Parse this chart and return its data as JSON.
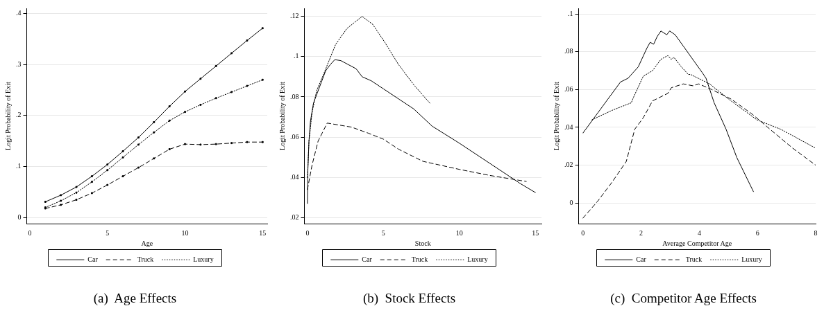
{
  "chart_data": [
    {
      "type": "line",
      "title": "(a)  Age Effects",
      "xlabel": "Age",
      "ylabel": "Logit Probability of Exit",
      "xlim": [
        -0.2,
        15.3
      ],
      "ylim": [
        -0.012,
        0.41
      ],
      "xticks": [
        0,
        5,
        10,
        15
      ],
      "yticks": [
        0,
        {
          "value": 0.1,
          "label": ".1"
        },
        {
          "value": 0.2,
          "label": ".2"
        },
        {
          "value": 0.3,
          "label": ".3"
        },
        {
          "value": 0.4,
          "label": ".4"
        }
      ],
      "grid": "y",
      "legend": "bottom",
      "marker": "square",
      "series": [
        {
          "name": "Car",
          "color": "#000000",
          "line_style": "solid",
          "x": [
            1,
            2,
            3,
            4,
            5,
            6,
            7,
            8,
            9,
            10,
            11,
            12,
            13,
            14,
            15
          ],
          "values": [
            0.031,
            0.044,
            0.06,
            0.081,
            0.104,
            0.13,
            0.157,
            0.187,
            0.218,
            0.247,
            0.272,
            0.297,
            0.322,
            0.347,
            0.371
          ]
        },
        {
          "name": "Truck",
          "color": "#000000",
          "line_style": "dashed",
          "x": [
            1,
            2,
            3,
            4,
            5,
            6,
            7,
            8,
            9,
            10,
            11,
            12,
            13,
            14,
            15
          ],
          "values": [
            0.018,
            0.025,
            0.035,
            0.048,
            0.064,
            0.081,
            0.098,
            0.116,
            0.134,
            0.144,
            0.143,
            0.144,
            0.146,
            0.148,
            0.148
          ]
        },
        {
          "name": "Luxury",
          "color": "#000000",
          "line_style": "dotted",
          "x": [
            1,
            2,
            3,
            4,
            5,
            6,
            7,
            8,
            9,
            10,
            11,
            12,
            13,
            14,
            15
          ],
          "values": [
            0.02,
            0.033,
            0.049,
            0.07,
            0.093,
            0.118,
            0.143,
            0.167,
            0.19,
            0.207,
            0.221,
            0.234,
            0.246,
            0.258,
            0.27
          ]
        }
      ]
    },
    {
      "type": "line",
      "title": "(b)  Stock Effects",
      "xlabel": "Stock",
      "ylabel": "Logit Probability of Exit",
      "xlim": [
        -0.2,
        15.4
      ],
      "ylim": [
        0.017,
        0.124
      ],
      "xticks": [
        0,
        5,
        10,
        15
      ],
      "yticks": [
        {
          "value": 0.02,
          "label": ".02"
        },
        {
          "value": 0.04,
          "label": ".04"
        },
        {
          "value": 0.06,
          "label": ".06"
        },
        {
          "value": 0.08,
          "label": ".08"
        },
        {
          "value": 0.1,
          "label": ".1"
        },
        {
          "value": 0.12,
          "label": ".12"
        }
      ],
      "grid": "y",
      "legend": "bottom",
      "series": [
        {
          "name": "Car",
          "color": "#000000",
          "line_style": "solid",
          "x": [
            0,
            0.03,
            0.1,
            0.2,
            0.4,
            0.6,
            0.9,
            1.2,
            1.5,
            1.8,
            2.2,
            2.7,
            3.2,
            3.6,
            4.2,
            5,
            6,
            7,
            8.2,
            10,
            12,
            14,
            15
          ],
          "values": [
            0.027,
            0.044,
            0.058,
            0.068,
            0.077,
            0.081,
            0.087,
            0.093,
            0.096,
            0.0985,
            0.098,
            0.096,
            0.094,
            0.09,
            0.088,
            0.084,
            0.079,
            0.074,
            0.0655,
            0.057,
            0.047,
            0.037,
            0.0325
          ]
        },
        {
          "name": "Truck",
          "color": "#000000",
          "line_style": "dashed",
          "x": [
            0,
            0.3,
            0.7,
            1.3,
            2.9,
            4,
            5,
            6,
            7.6,
            10,
            12,
            14.4
          ],
          "values": [
            0.034,
            0.046,
            0.058,
            0.067,
            0.065,
            0.062,
            0.059,
            0.054,
            0.048,
            0.044,
            0.041,
            0.038
          ]
        },
        {
          "name": "Luxury",
          "color": "#000000",
          "line_style": "dotted",
          "x": [
            0,
            0.1,
            0.3,
            0.6,
            1.1,
            1.85,
            2.6,
            3.6,
            4.3,
            5.1,
            6,
            7,
            8.1
          ],
          "values": [
            0.04,
            0.058,
            0.072,
            0.083,
            0.092,
            0.106,
            0.114,
            0.12,
            0.116,
            0.107,
            0.096,
            0.086,
            0.0765
          ]
        }
      ]
    },
    {
      "type": "line",
      "title": "(c)  Competitor Age Effects",
      "xlabel": "Average Competitor Age",
      "ylabel": "Logit Probability of Exit",
      "xlim": [
        -0.15,
        8
      ],
      "ylim": [
        -0.011,
        0.103
      ],
      "xticks": [
        0,
        2,
        4,
        6,
        8
      ],
      "yticks": [
        0,
        {
          "value": 0.02,
          "label": ".02"
        },
        {
          "value": 0.04,
          "label": ".04"
        },
        {
          "value": 0.06,
          "label": ".06"
        },
        {
          "value": 0.08,
          "label": ".08"
        },
        {
          "value": 0.1,
          "label": ".1"
        }
      ],
      "grid": "y",
      "legend": "bottom",
      "series": [
        {
          "name": "Car",
          "color": "#000000",
          "line_style": "solid",
          "x": [
            0,
            1.29,
            1.55,
            1.9,
            2.2,
            2.31,
            2.43,
            2.55,
            2.68,
            2.88,
            2.98,
            3.17,
            3.45,
            3.82,
            4.1,
            4.23,
            4.51,
            4.92,
            5.29,
            5.86
          ],
          "values": [
            0.037,
            0.064,
            0.066,
            0.072,
            0.082,
            0.085,
            0.084,
            0.088,
            0.091,
            0.089,
            0.091,
            0.089,
            0.083,
            0.075,
            0.069,
            0.066,
            0.053,
            0.039,
            0.024,
            0.006
          ]
        },
        {
          "name": "Truck",
          "color": "#000000",
          "line_style": "dashed",
          "x": [
            0,
            0.51,
            1.0,
            1.49,
            1.78,
            2.07,
            2.39,
            2.92,
            3.04,
            3.45,
            3.78,
            3.98,
            4.43,
            5.09,
            5.82,
            6.43,
            7.21,
            8
          ],
          "values": [
            -0.008,
            0.001,
            0.011,
            0.022,
            0.039,
            0.045,
            0.054,
            0.058,
            0.061,
            0.063,
            0.062,
            0.063,
            0.06,
            0.055,
            0.047,
            0.039,
            0.029,
            0.02
          ]
        },
        {
          "name": "Luxury",
          "color": "#000000",
          "line_style": "dotted",
          "x": [
            0.31,
            1.0,
            1.66,
            1.74,
            2.07,
            2.39,
            2.68,
            2.92,
            3.03,
            3.13,
            3.33,
            3.62,
            3.7,
            4.35,
            5.09,
            5.98,
            6.8,
            8
          ],
          "values": [
            0.044,
            0.049,
            0.053,
            0.056,
            0.067,
            0.07,
            0.076,
            0.078,
            0.076,
            0.077,
            0.073,
            0.068,
            0.068,
            0.063,
            0.054,
            0.044,
            0.039,
            0.029
          ]
        }
      ]
    }
  ]
}
